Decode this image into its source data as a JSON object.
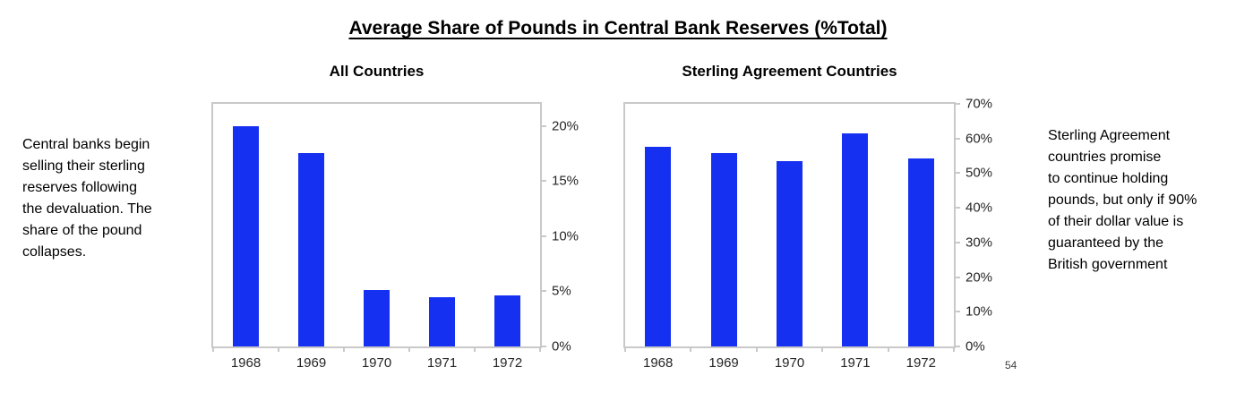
{
  "title": "Average Share of Pounds in Central Bank Reserves (%Total)",
  "page_number": "54",
  "colors": {
    "bar": "#1530f0",
    "axis": "#c9c9c9",
    "tick_label": "#262626",
    "text": "#000000"
  },
  "annotations": {
    "left": "Central banks begin\nselling their sterling\nreserves following\nthe devaluation. The\nshare of the pound\ncollapses.",
    "right": "Sterling Agreement\ncountries promise\nto continue holding\npounds, but only if 90%\nof their dollar value is\nguaranteed by the\nBritish government"
  },
  "chart_data": [
    {
      "type": "bar",
      "title": "All Countries",
      "categories": [
        "1968",
        "1969",
        "1970",
        "1971",
        "1972"
      ],
      "values": [
        20,
        17.5,
        5.1,
        4.5,
        4.6
      ],
      "xlabel": "",
      "ylabel": "",
      "ylim": [
        0,
        22
      ],
      "yticks": [
        0,
        5,
        10,
        15,
        20
      ],
      "ytick_suffix": "%",
      "axis_side": "right",
      "grid": false,
      "legend": false
    },
    {
      "type": "bar",
      "title": "Sterling Agreement Countries",
      "categories": [
        "1968",
        "1969",
        "1970",
        "1971",
        "1972"
      ],
      "values": [
        57.5,
        55.8,
        53.5,
        61.4,
        54.3
      ],
      "xlabel": "",
      "ylabel": "",
      "ylim": [
        0,
        70
      ],
      "yticks": [
        0,
        10,
        20,
        30,
        40,
        50,
        60,
        70
      ],
      "ytick_suffix": "%",
      "axis_side": "right",
      "grid": false,
      "legend": false
    }
  ]
}
